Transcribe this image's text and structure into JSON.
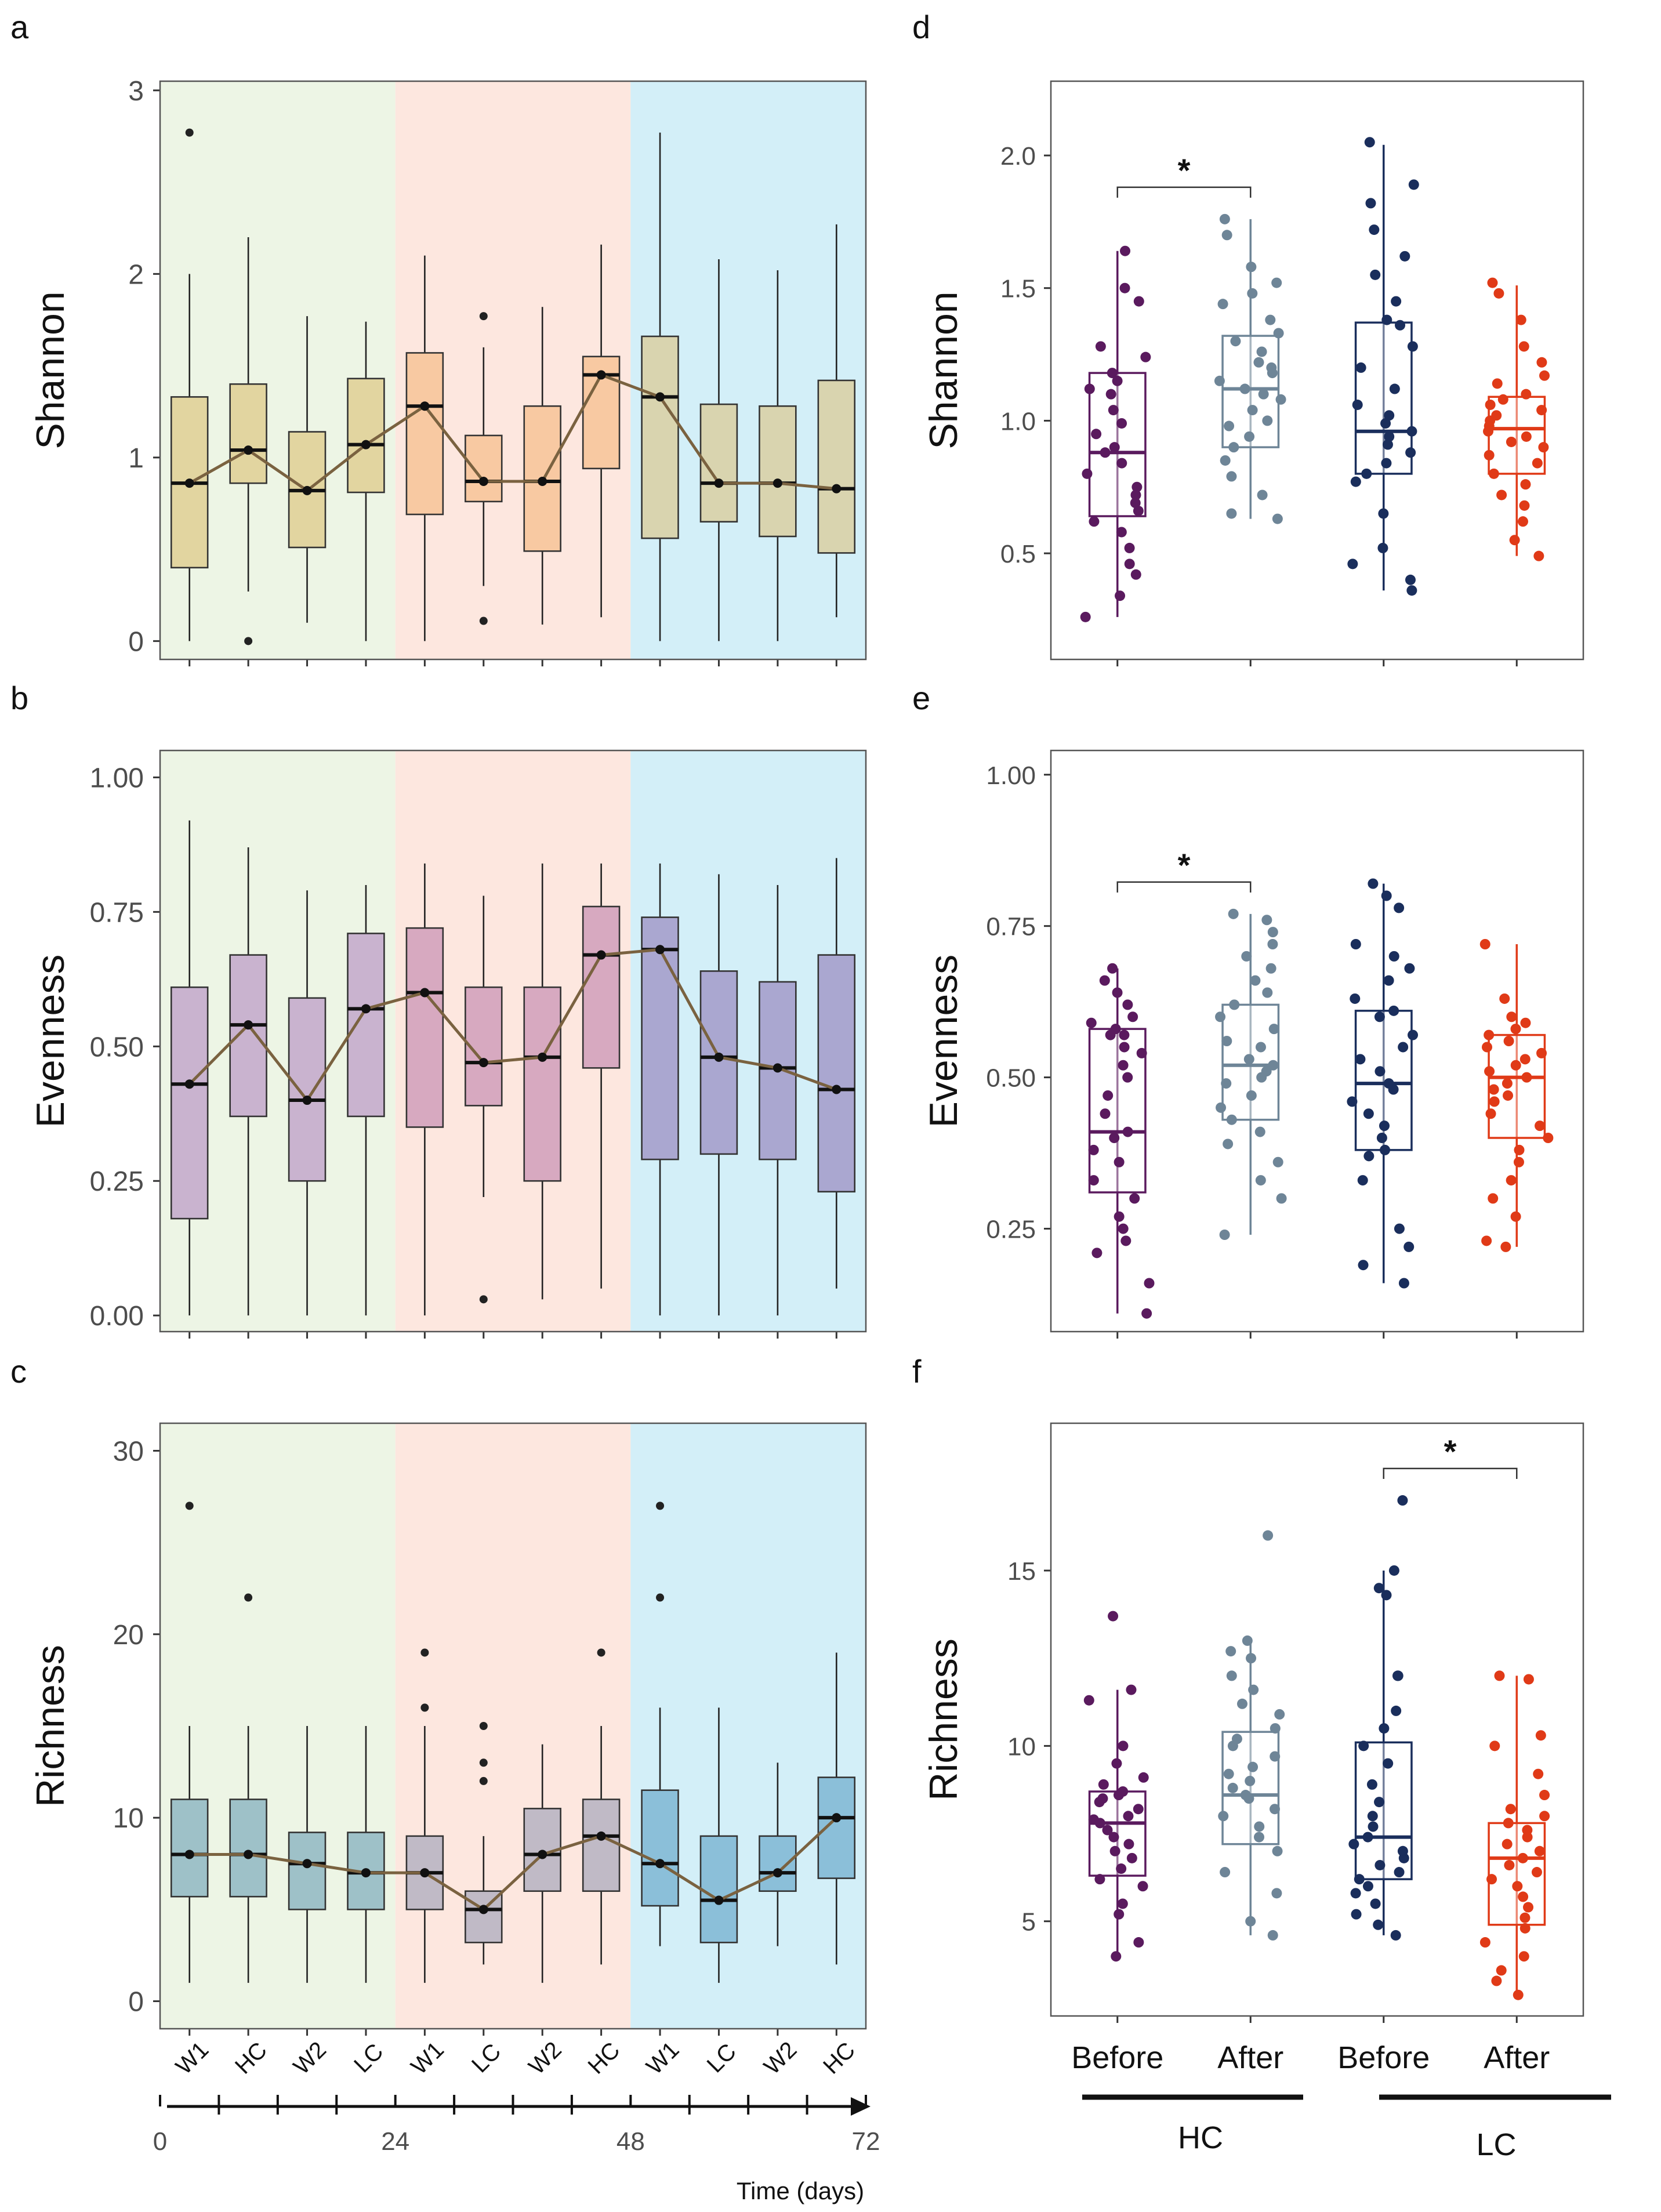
{
  "figure_labels": [
    "a",
    "b",
    "c",
    "d",
    "e",
    "f"
  ],
  "colors": {
    "bg_green": "#edf5e5",
    "bg_red": "#fde7df",
    "bg_blue": "#d3eff8",
    "line": "#7a6240",
    "hc_before": "#5a1a5e",
    "hc_after": "#6e8597",
    "lc_before": "#1a2e5c",
    "lc_after": "#e03a17"
  },
  "timeline": {
    "tick_labels": [
      "0",
      "24",
      "48",
      "72"
    ],
    "xlabel": "Time (days)",
    "phase_ticks": [
      0,
      24,
      48,
      72
    ]
  },
  "chart_data": [
    {
      "panel": "a",
      "type": "box",
      "ylabel": "Shannon",
      "ylim": [
        -0.1,
        3.05
      ],
      "yticks": [
        0,
        1,
        2,
        3
      ],
      "ytick_labels": [
        "0",
        "1",
        "2",
        "3"
      ],
      "categories": [
        "W1",
        "HC",
        "W2",
        "LC",
        "W1",
        "LC",
        "W2",
        "HC",
        "W1",
        "LC",
        "W2",
        "HC"
      ],
      "box_colors": [
        "#e2d5a0",
        "#e2d5a0",
        "#e2d5a0",
        "#e2d5a0",
        "#f8c9a2",
        "#f8c9a2",
        "#f8c9a2",
        "#f8c9a2",
        "#d9d4af",
        "#d9d4af",
        "#d9d4af",
        "#d9d4af"
      ],
      "boxes": [
        {
          "min": 0.0,
          "q1": 0.4,
          "median": 0.86,
          "q3": 1.33,
          "max": 2.0,
          "outliers": [
            2.77
          ]
        },
        {
          "min": 0.27,
          "q1": 0.86,
          "median": 1.04,
          "q3": 1.4,
          "max": 2.2,
          "outliers": [
            0.0
          ]
        },
        {
          "min": 0.1,
          "q1": 0.51,
          "median": 0.82,
          "q3": 1.14,
          "max": 1.77,
          "outliers": []
        },
        {
          "min": 0.0,
          "q1": 0.81,
          "median": 1.07,
          "q3": 1.43,
          "max": 1.74,
          "outliers": []
        },
        {
          "min": 0.0,
          "q1": 0.69,
          "median": 1.28,
          "q3": 1.57,
          "max": 2.1,
          "outliers": []
        },
        {
          "min": 0.3,
          "q1": 0.76,
          "median": 0.87,
          "q3": 1.12,
          "max": 1.6,
          "outliers": [
            1.77,
            0.11
          ]
        },
        {
          "min": 0.09,
          "q1": 0.49,
          "median": 0.87,
          "q3": 1.28,
          "max": 1.82,
          "outliers": []
        },
        {
          "min": 0.13,
          "q1": 0.94,
          "median": 1.45,
          "q3": 1.55,
          "max": 2.16,
          "outliers": []
        },
        {
          "min": 0.0,
          "q1": 0.56,
          "median": 1.33,
          "q3": 1.66,
          "max": 2.77,
          "outliers": []
        },
        {
          "min": 0.0,
          "q1": 0.65,
          "median": 0.86,
          "q3": 1.29,
          "max": 2.08,
          "outliers": []
        },
        {
          "min": 0.0,
          "q1": 0.57,
          "median": 0.86,
          "q3": 1.28,
          "max": 2.02,
          "outliers": []
        },
        {
          "min": 0.13,
          "q1": 0.48,
          "median": 0.83,
          "q3": 1.42,
          "max": 2.27,
          "outliers": []
        }
      ]
    },
    {
      "panel": "b",
      "type": "box",
      "ylabel": "Evenness",
      "ylim": [
        -0.03,
        1.05
      ],
      "yticks": [
        0,
        0.25,
        0.5,
        0.75,
        1.0
      ],
      "ytick_labels": [
        "0.00",
        "0.25",
        "0.50",
        "0.75",
        "1.00"
      ],
      "categories": [
        "W1",
        "HC",
        "W2",
        "LC",
        "W1",
        "LC",
        "W2",
        "HC",
        "W1",
        "LC",
        "W2",
        "HC"
      ],
      "box_colors": [
        "#c9b3cf",
        "#c9b3cf",
        "#c9b3cf",
        "#c9b3cf",
        "#d7a9c0",
        "#d7a9c0",
        "#d7a9c0",
        "#d7a9c0",
        "#aaa7d0",
        "#aaa7d0",
        "#aaa7d0",
        "#aaa7d0"
      ],
      "boxes": [
        {
          "min": 0.0,
          "q1": 0.18,
          "median": 0.43,
          "q3": 0.61,
          "max": 0.92,
          "outliers": []
        },
        {
          "min": 0.0,
          "q1": 0.37,
          "median": 0.54,
          "q3": 0.67,
          "max": 0.87,
          "outliers": []
        },
        {
          "min": 0.0,
          "q1": 0.25,
          "median": 0.4,
          "q3": 0.59,
          "max": 0.79,
          "outliers": []
        },
        {
          "min": 0.0,
          "q1": 0.37,
          "median": 0.57,
          "q3": 0.71,
          "max": 0.8,
          "outliers": []
        },
        {
          "min": 0.0,
          "q1": 0.35,
          "median": 0.6,
          "q3": 0.72,
          "max": 0.84,
          "outliers": []
        },
        {
          "min": 0.22,
          "q1": 0.39,
          "median": 0.47,
          "q3": 0.61,
          "max": 0.78,
          "outliers": [
            0.03
          ]
        },
        {
          "min": 0.03,
          "q1": 0.25,
          "median": 0.48,
          "q3": 0.61,
          "max": 0.84,
          "outliers": []
        },
        {
          "min": 0.05,
          "q1": 0.46,
          "median": 0.67,
          "q3": 0.76,
          "max": 0.84,
          "outliers": []
        },
        {
          "min": 0.0,
          "q1": 0.29,
          "median": 0.68,
          "q3": 0.74,
          "max": 0.84,
          "outliers": []
        },
        {
          "min": 0.0,
          "q1": 0.3,
          "median": 0.48,
          "q3": 0.64,
          "max": 0.82,
          "outliers": []
        },
        {
          "min": 0.0,
          "q1": 0.29,
          "median": 0.46,
          "q3": 0.62,
          "max": 0.8,
          "outliers": []
        },
        {
          "min": 0.05,
          "q1": 0.23,
          "median": 0.42,
          "q3": 0.67,
          "max": 0.85,
          "outliers": []
        }
      ]
    },
    {
      "panel": "c",
      "type": "box",
      "ylabel": "Richness",
      "ylim": [
        -1.5,
        31.5
      ],
      "yticks": [
        0,
        10,
        20,
        30
      ],
      "ytick_labels": [
        "0",
        "10",
        "20",
        "30"
      ],
      "categories": [
        "W1",
        "HC",
        "W2",
        "LC",
        "W1",
        "LC",
        "W2",
        "HC",
        "W1",
        "LC",
        "W2",
        "HC"
      ],
      "box_colors": [
        "#9ec1c8",
        "#9ec1c8",
        "#9ec1c8",
        "#9ec1c8",
        "#c0bac6",
        "#c0bac6",
        "#c0bac6",
        "#c0bac6",
        "#8bbfd9",
        "#8bbfd9",
        "#8bbfd9",
        "#8bbfd9"
      ],
      "boxes": [
        {
          "min": 1,
          "q1": 5.7,
          "median": 8,
          "q3": 11,
          "max": 15,
          "outliers": [
            27
          ]
        },
        {
          "min": 1,
          "q1": 5.7,
          "median": 8,
          "q3": 11,
          "max": 15,
          "outliers": [
            22
          ]
        },
        {
          "min": 1,
          "q1": 5,
          "median": 7.5,
          "q3": 9.2,
          "max": 15,
          "outliers": []
        },
        {
          "min": 1,
          "q1": 5,
          "median": 7,
          "q3": 9.2,
          "max": 15,
          "outliers": []
        },
        {
          "min": 1,
          "q1": 5,
          "median": 7,
          "q3": 9,
          "max": 15,
          "outliers": [
            19,
            16
          ]
        },
        {
          "min": 2,
          "q1": 3.2,
          "median": 5,
          "q3": 6,
          "max": 9,
          "outliers": [
            15,
            13,
            12
          ]
        },
        {
          "min": 1,
          "q1": 6,
          "median": 8,
          "q3": 10.5,
          "max": 14,
          "outliers": []
        },
        {
          "min": 2,
          "q1": 6,
          "median": 9,
          "q3": 11,
          "max": 15,
          "outliers": [
            19
          ]
        },
        {
          "min": 3,
          "q1": 5.2,
          "median": 7.5,
          "q3": 11.5,
          "max": 16,
          "outliers": [
            27,
            22
          ]
        },
        {
          "min": 1,
          "q1": 3.2,
          "median": 5.5,
          "q3": 9,
          "max": 16,
          "outliers": []
        },
        {
          "min": 3,
          "q1": 6,
          "median": 7,
          "q3": 9,
          "max": 13,
          "outliers": []
        },
        {
          "min": 2,
          "q1": 6.7,
          "median": 10,
          "q3": 12.2,
          "max": 19,
          "outliers": []
        }
      ]
    },
    {
      "panel": "d",
      "type": "box_jitter",
      "ylabel": "Shannon",
      "ylim": [
        0.1,
        2.28
      ],
      "yticks": [
        0.5,
        1.0,
        1.5,
        2.0
      ],
      "ytick_labels": [
        "0.5",
        "1.0",
        "1.5",
        "2.0"
      ],
      "significance": [
        {
          "from": 0,
          "to": 1,
          "label": "*"
        }
      ],
      "groups": [
        {
          "name": "HC Before",
          "min": 0.26,
          "q1": 0.64,
          "median": 0.88,
          "q3": 1.18,
          "max": 1.64,
          "points": [
            0.26,
            0.34,
            0.42,
            0.46,
            0.52,
            0.58,
            0.62,
            0.66,
            0.69,
            0.72,
            0.75,
            0.8,
            0.84,
            0.88,
            0.9,
            0.95,
            0.99,
            1.04,
            1.1,
            1.12,
            1.15,
            1.18,
            1.24,
            1.28,
            1.45,
            1.5,
            1.64
          ]
        },
        {
          "name": "HC After",
          "min": 0.63,
          "q1": 0.9,
          "median": 1.12,
          "q3": 1.32,
          "max": 1.76,
          "points": [
            0.63,
            0.65,
            0.72,
            0.79,
            0.85,
            0.9,
            0.94,
            0.98,
            1.0,
            1.04,
            1.08,
            1.1,
            1.12,
            1.15,
            1.18,
            1.2,
            1.22,
            1.26,
            1.3,
            1.33,
            1.38,
            1.44,
            1.48,
            1.52,
            1.58,
            1.7,
            1.76
          ]
        },
        {
          "name": "LC Before",
          "min": 0.36,
          "q1": 0.8,
          "median": 0.96,
          "q3": 1.37,
          "max": 2.04,
          "points": [
            0.36,
            0.4,
            0.46,
            0.52,
            0.65,
            0.77,
            0.8,
            0.84,
            0.88,
            0.91,
            0.94,
            0.96,
            0.99,
            1.02,
            1.06,
            1.12,
            1.2,
            1.28,
            1.36,
            1.38,
            1.45,
            1.55,
            1.62,
            1.72,
            1.82,
            1.89,
            2.05
          ]
        },
        {
          "name": "LC After",
          "min": 0.49,
          "q1": 0.8,
          "median": 0.97,
          "q3": 1.09,
          "max": 1.51,
          "points": [
            0.49,
            0.55,
            0.62,
            0.68,
            0.72,
            0.76,
            0.8,
            0.84,
            0.87,
            0.9,
            0.92,
            0.94,
            0.96,
            0.98,
            1.0,
            1.02,
            1.04,
            1.06,
            1.08,
            1.1,
            1.14,
            1.17,
            1.22,
            1.28,
            1.38,
            1.48,
            1.52
          ]
        }
      ]
    },
    {
      "panel": "e",
      "type": "box_jitter",
      "ylabel": "Evenness",
      "ylim": [
        0.08,
        1.04
      ],
      "yticks": [
        0.25,
        0.5,
        0.75,
        1.0
      ],
      "ytick_labels": [
        "0.25",
        "0.50",
        "0.75",
        "1.00"
      ],
      "significance": [
        {
          "from": 0,
          "to": 1,
          "label": "*"
        }
      ],
      "groups": [
        {
          "name": "HC Before",
          "min": 0.11,
          "q1": 0.31,
          "median": 0.41,
          "q3": 0.58,
          "max": 0.68,
          "points": [
            0.11,
            0.16,
            0.21,
            0.23,
            0.25,
            0.27,
            0.3,
            0.33,
            0.36,
            0.38,
            0.4,
            0.41,
            0.44,
            0.47,
            0.5,
            0.52,
            0.54,
            0.55,
            0.57,
            0.58,
            0.59,
            0.6,
            0.62,
            0.64,
            0.66,
            0.68,
            0.57
          ]
        },
        {
          "name": "HC After",
          "min": 0.24,
          "q1": 0.43,
          "median": 0.52,
          "q3": 0.62,
          "max": 0.77,
          "points": [
            0.24,
            0.3,
            0.33,
            0.36,
            0.39,
            0.41,
            0.43,
            0.45,
            0.47,
            0.49,
            0.5,
            0.51,
            0.52,
            0.53,
            0.55,
            0.56,
            0.58,
            0.6,
            0.62,
            0.64,
            0.66,
            0.68,
            0.7,
            0.72,
            0.74,
            0.76,
            0.77
          ]
        },
        {
          "name": "LC Before",
          "min": 0.16,
          "q1": 0.38,
          "median": 0.49,
          "q3": 0.61,
          "max": 0.82,
          "points": [
            0.16,
            0.19,
            0.22,
            0.25,
            0.33,
            0.37,
            0.38,
            0.4,
            0.42,
            0.44,
            0.46,
            0.48,
            0.49,
            0.51,
            0.53,
            0.55,
            0.57,
            0.6,
            0.61,
            0.63,
            0.66,
            0.68,
            0.7,
            0.72,
            0.78,
            0.8,
            0.82
          ]
        },
        {
          "name": "LC After",
          "min": 0.22,
          "q1": 0.4,
          "median": 0.5,
          "q3": 0.57,
          "max": 0.72,
          "points": [
            0.22,
            0.23,
            0.27,
            0.3,
            0.33,
            0.36,
            0.38,
            0.4,
            0.42,
            0.44,
            0.46,
            0.47,
            0.48,
            0.49,
            0.5,
            0.51,
            0.52,
            0.53,
            0.54,
            0.55,
            0.56,
            0.57,
            0.58,
            0.59,
            0.6,
            0.63,
            0.72
          ]
        }
      ]
    },
    {
      "panel": "f",
      "type": "box_jitter",
      "ylabel": "Richness",
      "ylim": [
        2.3,
        19.2
      ],
      "yticks": [
        5,
        10,
        15
      ],
      "ytick_labels": [
        "5",
        "10",
        "15"
      ],
      "significance": [
        {
          "from": 2,
          "to": 3,
          "label": "*"
        }
      ],
      "groups": [
        {
          "name": "HC Before",
          "min": 4,
          "q1": 6.3,
          "median": 7.8,
          "q3": 8.7,
          "max": 11.6,
          "points": [
            4,
            4.4,
            5.2,
            5.5,
            6,
            6.2,
            6.5,
            6.8,
            7,
            7.2,
            7.4,
            7.6,
            7.8,
            7.9,
            8,
            8.2,
            8.4,
            8.5,
            8.6,
            8.7,
            8.9,
            9.1,
            9.5,
            10,
            11.3,
            11.6,
            13.7
          ]
        },
        {
          "name": "HC After",
          "min": 4.6,
          "q1": 7.2,
          "median": 8.6,
          "q3": 10.4,
          "max": 13,
          "points": [
            4.6,
            5,
            5.8,
            6.4,
            7,
            7.4,
            7.7,
            8,
            8.2,
            8.5,
            8.6,
            8.8,
            9,
            9.2,
            9.4,
            9.7,
            10,
            10.2,
            10.5,
            10.9,
            11.2,
            11.6,
            12,
            12.5,
            12.7,
            13,
            16
          ]
        },
        {
          "name": "LC Before",
          "min": 4.6,
          "q1": 6.2,
          "median": 7.4,
          "q3": 10.1,
          "max": 15,
          "points": [
            4.6,
            4.9,
            5.2,
            5.5,
            5.8,
            6,
            6.2,
            6.4,
            6.6,
            6.8,
            7,
            7.2,
            7.4,
            7.7,
            8,
            8.4,
            8.9,
            9.5,
            10,
            10.5,
            11,
            12,
            12,
            14.3,
            14.5,
            15,
            17
          ]
        },
        {
          "name": "LC After",
          "min": 2.9,
          "q1": 4.9,
          "median": 6.8,
          "q3": 7.8,
          "max": 12,
          "points": [
            2.9,
            3.3,
            3.6,
            4,
            4.4,
            4.8,
            5.1,
            5.4,
            5.7,
            6,
            6.2,
            6.4,
            6.6,
            6.8,
            7,
            7.2,
            7.4,
            7.6,
            7.8,
            8,
            8.2,
            8.6,
            9.2,
            10,
            10.3,
            11.9,
            12
          ]
        }
      ],
      "x_tick_labels": [
        "Before",
        "After",
        "Before",
        "After"
      ],
      "group_labels": [
        "HC",
        "LC"
      ]
    }
  ]
}
